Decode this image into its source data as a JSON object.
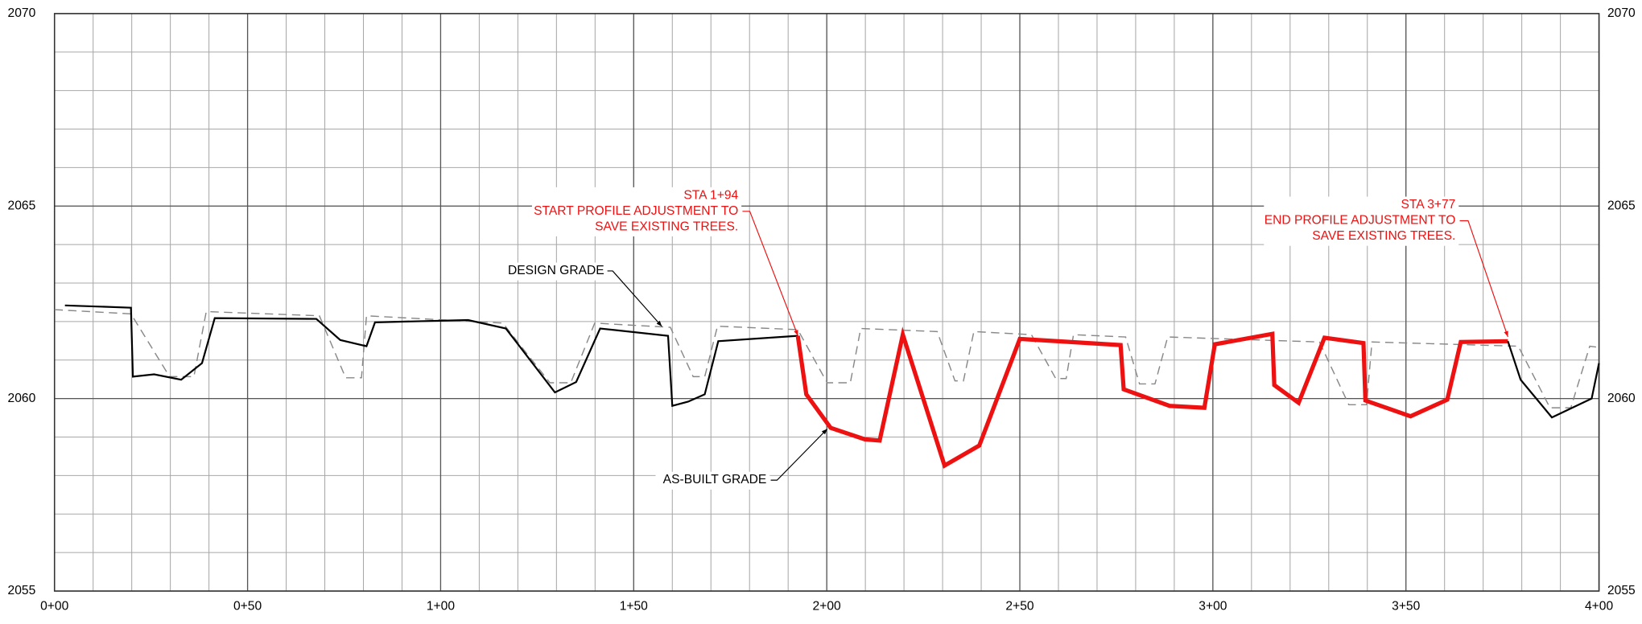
{
  "chart_data": {
    "type": "line",
    "xlim": [
      0,
      400
    ],
    "xticks": [
      {
        "value": 0,
        "label": "0+00"
      },
      {
        "value": 50,
        "label": "0+50"
      },
      {
        "value": 100,
        "label": "1+00"
      },
      {
        "value": 150,
        "label": "1+50"
      },
      {
        "value": 200,
        "label": "2+00"
      },
      {
        "value": 250,
        "label": "2+50"
      },
      {
        "value": 300,
        "label": "3+00"
      },
      {
        "value": 350,
        "label": "3+50"
      },
      {
        "value": 400,
        "label": "4+00"
      }
    ],
    "ylim": [
      2055,
      2070
    ],
    "yticks": [
      2055,
      2060,
      2065,
      2070
    ],
    "y2lim": [
      2055,
      2070
    ],
    "y2ticks": [
      2055,
      2060,
      2065,
      2070
    ],
    "grid": true,
    "minor_grid": {
      "x_step": 10,
      "y_step": 1
    },
    "series": [
      {
        "color": "#888888",
        "dashed": true,
        "width": 1.1,
        "x": [
          0,
          19.8,
          29.8,
          36.1,
          39.3,
          68.6,
          75.4,
          79.5,
          80.8,
          116.1,
          128.3,
          133.7,
          139.9,
          159.5,
          165.4,
          168.4,
          171.7,
          192.5,
          200.1,
          206.1,
          208.8,
          228.6,
          233.2,
          235.4,
          238.1,
          253.0,
          259.3,
          262.0,
          263.9,
          277.4,
          281.0,
          285.0,
          288.3,
          327.6,
          335.2,
          339.8,
          341.2,
          379.1,
          387.3,
          392.7,
          397.6,
          400
        ],
        "values": [
          2062.31,
          2062.2,
          2060.57,
          2060.57,
          2062.26,
          2062.15,
          2060.54,
          2060.54,
          2062.15,
          2061.96,
          2060.41,
          2060.41,
          2061.96,
          2061.85,
          2060.57,
          2060.57,
          2061.88,
          2061.79,
          2060.41,
          2060.41,
          2061.82,
          2061.74,
          2060.46,
          2060.46,
          2061.74,
          2061.66,
          2060.52,
          2060.52,
          2061.66,
          2061.6,
          2060.38,
          2060.38,
          2061.6,
          2061.47,
          2059.84,
          2059.84,
          2061.47,
          2061.36,
          2059.76,
          2059.76,
          2061.36,
          2061.33
        ]
      },
      {
        "color": "#000000",
        "width": 1.7,
        "x": [
          2.7,
          19.8,
          20.3,
          25.8,
          32.8,
          38.2,
          41.5,
          67.8,
          74.0,
          80.8,
          83.0,
          107.1,
          116.9,
          129.6,
          135.1,
          141.3,
          158.9,
          160.0,
          164.1,
          168.4,
          171.9,
          192.5
        ],
        "values": [
          2062.42,
          2062.36,
          2060.57,
          2060.63,
          2060.49,
          2060.92,
          2062.09,
          2062.07,
          2061.52,
          2061.36,
          2061.98,
          2062.04,
          2061.82,
          2060.16,
          2060.43,
          2061.82,
          2061.63,
          2059.81,
          2059.92,
          2060.11,
          2061.49,
          2061.63
        ]
      },
      {
        "color": "#ee1111",
        "width": 4,
        "x": [
          192.5,
          194.7,
          201.0,
          209.9,
          213.7,
          219.7,
          230.5,
          239.5,
          250.0,
          276.1,
          276.9,
          288.8,
          297.8,
          300.5,
          315.4,
          315.9,
          322.2,
          328.9,
          339.0,
          339.5,
          351.2,
          360.7,
          364.2,
          376.4
        ],
        "values": [
          2061.63,
          2060.11,
          2059.24,
          2058.94,
          2058.91,
          2061.66,
          2058.26,
          2058.78,
          2061.55,
          2061.39,
          2060.24,
          2059.81,
          2059.76,
          2061.41,
          2061.68,
          2060.35,
          2059.89,
          2061.58,
          2061.44,
          2059.95,
          2059.54,
          2059.97,
          2061.47,
          2061.49
        ]
      },
      {
        "color": "#000000",
        "width": 1.7,
        "x": [
          376.4,
          379.7,
          387.8,
          398.1,
          400
        ],
        "values": [
          2061.49,
          2060.49,
          2059.51,
          2060.0,
          2060.92
        ]
      }
    ],
    "annotations": [
      {
        "lines": [
          "STA 1+94",
          "START PROFILE ADJUSTMENT TO",
          "SAVE EXISTING TREES."
        ],
        "color": "#ee1111"
      },
      {
        "lines": [
          "STA 3+77",
          "END PROFILE ADJUSTMENT TO",
          "SAVE EXISTING TREES."
        ],
        "color": "#ee1111"
      },
      {
        "lines": [
          "DESIGN GRADE"
        ],
        "color": "#000000"
      },
      {
        "lines": [
          "AS-BUILT GRADE"
        ],
        "color": "#000000"
      }
    ]
  }
}
